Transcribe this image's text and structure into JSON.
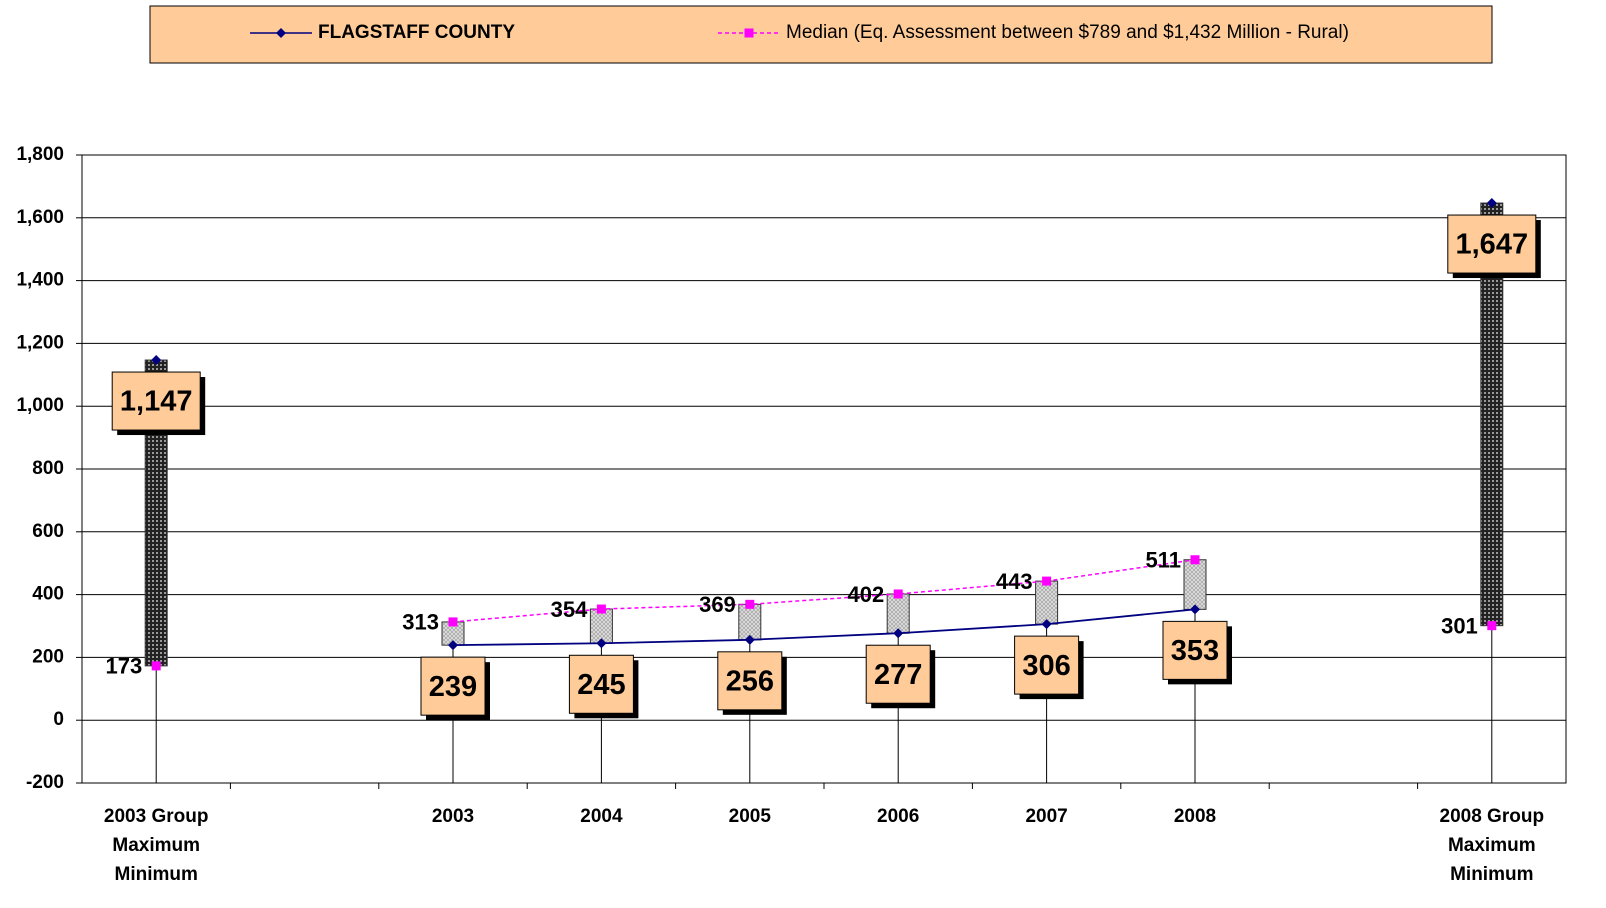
{
  "chart_data": {
    "type": "line",
    "categories": [
      "2003 Group\nMaximum\nMinimum",
      null,
      "2003",
      "2004",
      "2005",
      "2006",
      "2007",
      "2008",
      null,
      "2008 Group\nMaximum\nMinimum"
    ],
    "series": [
      {
        "name": "FLAGSTAFF COUNTY",
        "color": "#000080",
        "values": [
          1147,
          null,
          239,
          245,
          256,
          277,
          306,
          353,
          null,
          1647
        ],
        "value_labels": [
          "1,147",
          null,
          "239",
          "245",
          "256",
          "277",
          "306",
          "353",
          null,
          "1,647"
        ]
      },
      {
        "name": "Median (Eq. Assessment between $789 and $1,432 Million - Rural)",
        "color": "#ff00ff",
        "values": [
          173,
          null,
          313,
          354,
          369,
          402,
          443,
          511,
          null,
          301
        ]
      }
    ],
    "ylim": [
      -200,
      1800
    ],
    "yticks": [
      -200,
      0,
      200,
      400,
      600,
      800,
      {
        "value": 1000,
        "label": "1,000"
      },
      {
        "value": 1200,
        "label": "1,200"
      },
      {
        "value": 1400,
        "label": "1,400"
      },
      {
        "value": 1600,
        "label": "1,600"
      },
      {
        "value": 1800,
        "label": "1,800"
      }
    ],
    "grid": true,
    "legend": "top"
  }
}
